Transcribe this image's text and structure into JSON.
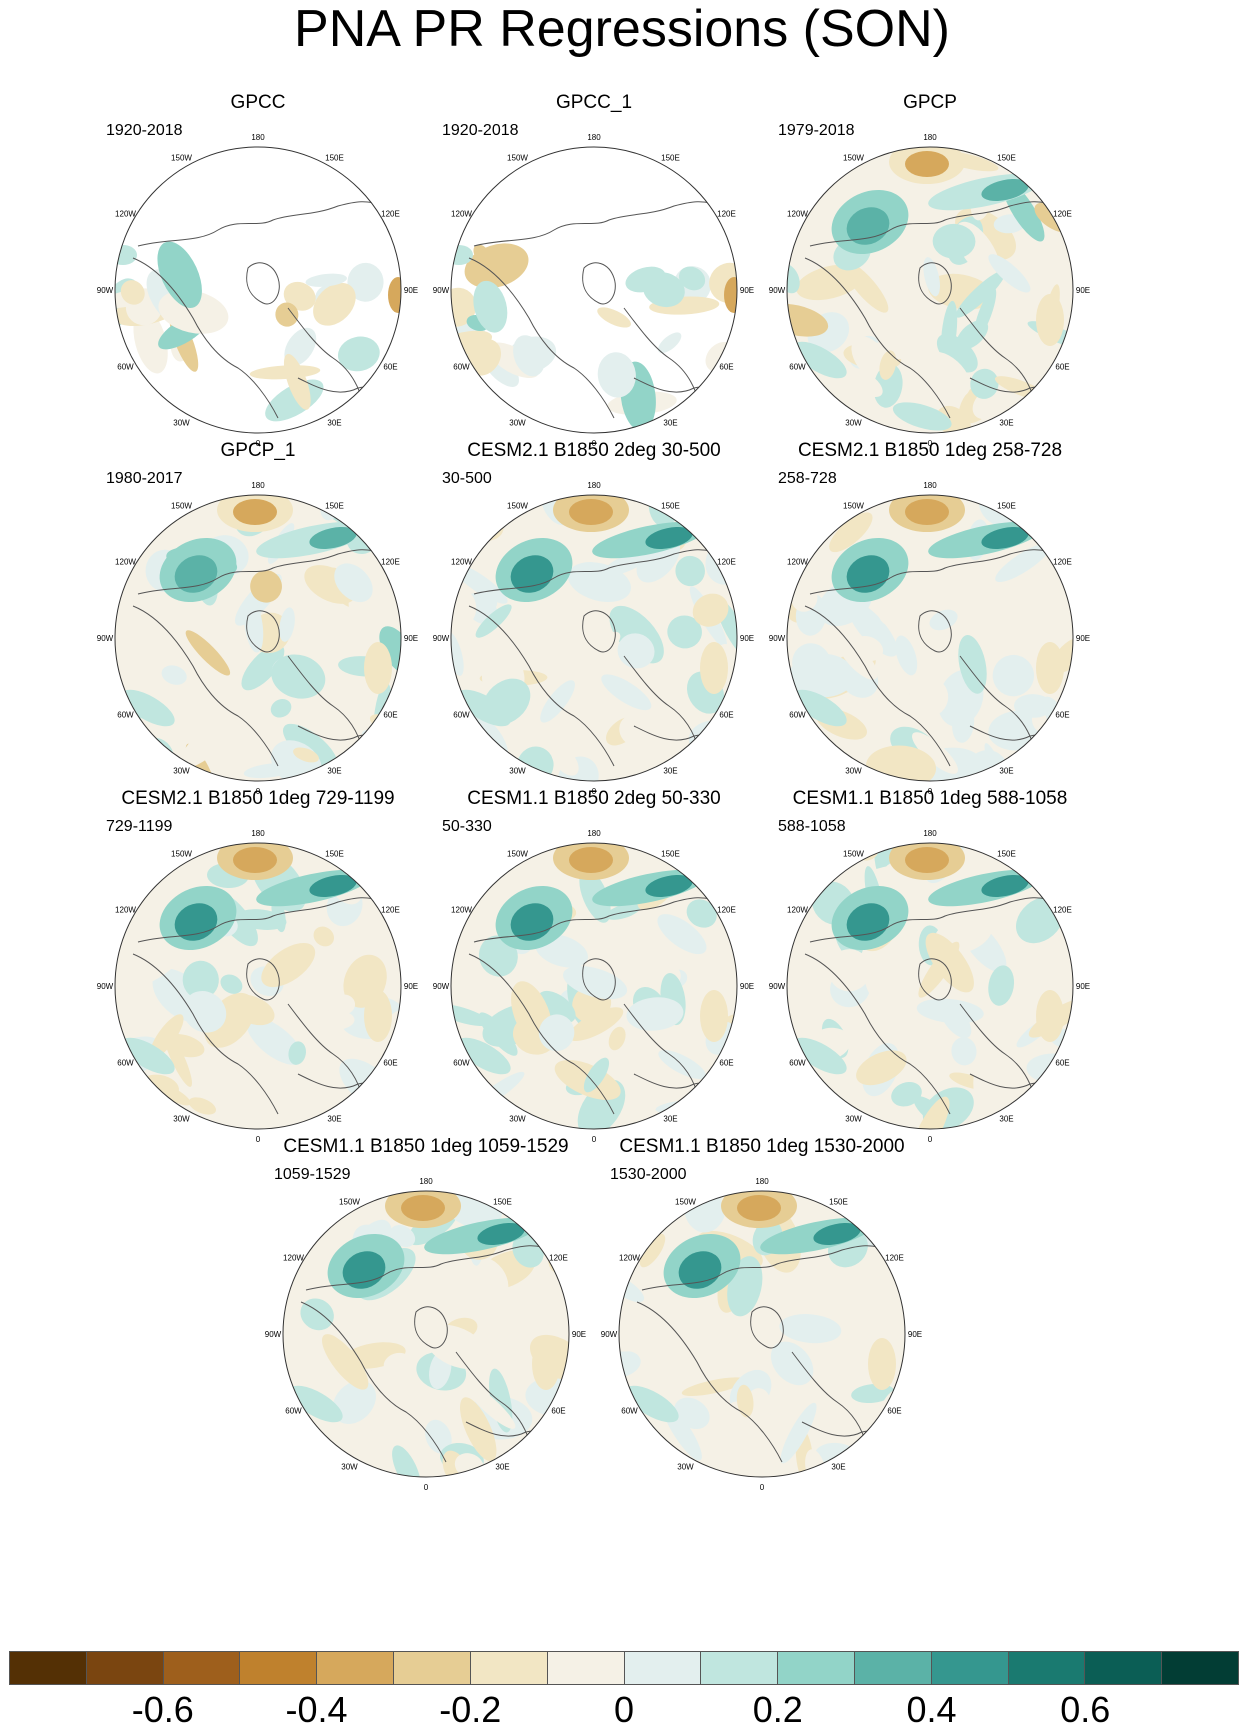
{
  "title": "PNA PR Regressions (SON)",
  "panels": [
    {
      "title": "GPCC",
      "period": "1920-2018",
      "obs": true,
      "sparse": true,
      "seed": 11
    },
    {
      "title": "GPCC_1",
      "period": "1920-2018",
      "obs": true,
      "sparse": true,
      "seed": 12
    },
    {
      "title": "GPCP",
      "period": "1979-2018",
      "obs": true,
      "sparse": false,
      "seed": 13
    },
    {
      "title": "GPCP_1",
      "period": "1980-2017",
      "obs": true,
      "sparse": false,
      "seed": 14
    },
    {
      "title": "CESM2.1 B1850 2deg 30-500",
      "period": "30-500",
      "obs": false,
      "sparse": false,
      "seed": 21
    },
    {
      "title": "CESM2.1 B1850 1deg 258-728",
      "period": "258-728",
      "obs": false,
      "sparse": false,
      "seed": 22
    },
    {
      "title": "CESM2.1 B1850 1deg 729-1199",
      "period": "729-1199",
      "obs": false,
      "sparse": false,
      "seed": 23
    },
    {
      "title": "CESM1.1 B1850 2deg 50-330",
      "period": "50-330",
      "obs": false,
      "sparse": false,
      "seed": 24
    },
    {
      "title": "CESM1.1 B1850 1deg 588-1058",
      "period": "588-1058",
      "obs": false,
      "sparse": false,
      "seed": 25
    },
    {
      "title": "CESM1.1 B1850 1deg 1059-1529",
      "period": "1059-1529",
      "obs": false,
      "sparse": false,
      "seed": 26
    },
    {
      "title": "CESM1.1 B1850 1deg 1530-2000",
      "period": "1530-2000",
      "obs": false,
      "sparse": false,
      "seed": 27
    }
  ],
  "longitude_labels": [
    "180",
    "150E",
    "120E",
    "90E",
    "60E",
    "30E",
    "0",
    "30W",
    "60W",
    "90W",
    "120W",
    "150W"
  ],
  "colorbar": {
    "colors": [
      "#543005",
      "#7a4510",
      "#9e5f1c",
      "#bf812d",
      "#d6a85c",
      "#e6cd94",
      "#f2e6c4",
      "#f5f1e6",
      "#e3efee",
      "#c0e6df",
      "#92d4c8",
      "#5bb2a7",
      "#35978f",
      "#1a7a70",
      "#0b5e55",
      "#023d34"
    ],
    "tick_labels": [
      "-0.6",
      "-0.4",
      "-0.2",
      "0",
      "0.2",
      "0.4",
      "0.6"
    ],
    "tick_values": [
      -0.6,
      -0.4,
      -0.2,
      0,
      0.2,
      0.4,
      0.6
    ],
    "min": -0.8,
    "max": 0.8
  }
}
